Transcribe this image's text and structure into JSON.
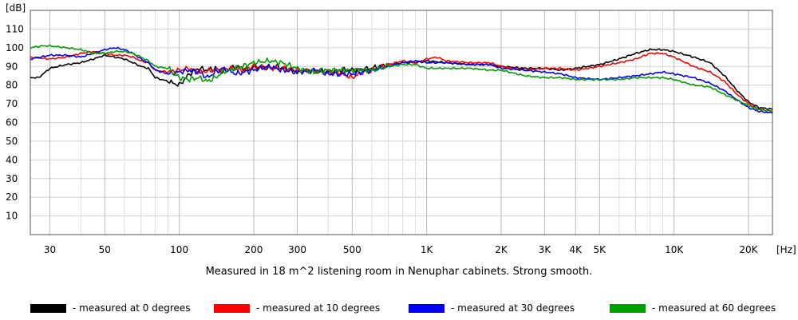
{
  "chart_data": {
    "type": "line",
    "title": "",
    "caption": "Measured in 18 m^2 listening room in Nenuphar cabinets. Strong smooth.",
    "xlabel": "[Hz]",
    "ylabel": "[dB]",
    "xscale": "log",
    "xlim": [
      25,
      25000
    ],
    "ylim": [
      0,
      120
    ],
    "grid": true,
    "legend_position": "bottom",
    "y_ticks": [
      {
        "value": 110,
        "label": "110"
      },
      {
        "value": 100,
        "label": "100"
      },
      {
        "value": 90,
        "label": "90"
      },
      {
        "value": 80,
        "label": "80"
      },
      {
        "value": 70,
        "label": "70"
      },
      {
        "value": 60,
        "label": "60"
      },
      {
        "value": 50,
        "label": "50"
      },
      {
        "value": 40,
        "label": "40"
      },
      {
        "value": 30,
        "label": "30"
      },
      {
        "value": 20,
        "label": "20"
      },
      {
        "value": 10,
        "label": "10"
      }
    ],
    "x_ticks": [
      {
        "value": 30,
        "label": "30"
      },
      {
        "value": 50,
        "label": "50"
      },
      {
        "value": 100,
        "label": "100"
      },
      {
        "value": 200,
        "label": "200"
      },
      {
        "value": 300,
        "label": "300"
      },
      {
        "value": 500,
        "label": "500"
      },
      {
        "value": 1000,
        "label": "1K"
      },
      {
        "value": 2000,
        "label": "2K"
      },
      {
        "value": 3000,
        "label": "3K"
      },
      {
        "value": 4000,
        "label": "4K"
      },
      {
        "value": 5000,
        "label": "5K"
      },
      {
        "value": 10000,
        "label": "10K"
      },
      {
        "value": 20000,
        "label": "20K"
      }
    ],
    "series": [
      {
        "name": "measured at 0 degrees",
        "legend_label": "- measured at 0 degrees",
        "color": "#000000",
        "points": [
          [
            25,
            84
          ],
          [
            27,
            84
          ],
          [
            30,
            89
          ],
          [
            35,
            91
          ],
          [
            40,
            92
          ],
          [
            45,
            94
          ],
          [
            50,
            96
          ],
          [
            55,
            95
          ],
          [
            60,
            94
          ],
          [
            65,
            92
          ],
          [
            70,
            90
          ],
          [
            75,
            89
          ],
          [
            80,
            84
          ],
          [
            90,
            82
          ],
          [
            100,
            80
          ],
          [
            110,
            86
          ],
          [
            120,
            89
          ],
          [
            130,
            88
          ],
          [
            140,
            89
          ],
          [
            150,
            87
          ],
          [
            170,
            90
          ],
          [
            190,
            88
          ],
          [
            200,
            90
          ],
          [
            230,
            89
          ],
          [
            250,
            90
          ],
          [
            300,
            87
          ],
          [
            350,
            88
          ],
          [
            400,
            87
          ],
          [
            450,
            88
          ],
          [
            500,
            88
          ],
          [
            600,
            89
          ],
          [
            700,
            91
          ],
          [
            800,
            92
          ],
          [
            900,
            92
          ],
          [
            1000,
            93
          ],
          [
            1200,
            92
          ],
          [
            1500,
            91
          ],
          [
            1800,
            91
          ],
          [
            2000,
            90
          ],
          [
            2500,
            89
          ],
          [
            3000,
            89
          ],
          [
            3500,
            88
          ],
          [
            4000,
            89
          ],
          [
            5000,
            91
          ],
          [
            6000,
            94
          ],
          [
            7000,
            97
          ],
          [
            8000,
            99
          ],
          [
            9000,
            99
          ],
          [
            10000,
            98
          ],
          [
            12000,
            95
          ],
          [
            14000,
            92
          ],
          [
            16000,
            85
          ],
          [
            18000,
            77
          ],
          [
            20000,
            71
          ],
          [
            22000,
            68
          ],
          [
            25000,
            67
          ]
        ]
      },
      {
        "name": "measured at 10 degrees",
        "legend_label": "- measured at 10 degrees",
        "color": "#ff0000",
        "points": [
          [
            25,
            95
          ],
          [
            30,
            94
          ],
          [
            35,
            95
          ],
          [
            40,
            97
          ],
          [
            45,
            98
          ],
          [
            50,
            97
          ],
          [
            55,
            96
          ],
          [
            60,
            96
          ],
          [
            65,
            95
          ],
          [
            70,
            93
          ],
          [
            75,
            92
          ],
          [
            80,
            88
          ],
          [
            90,
            87
          ],
          [
            100,
            88
          ],
          [
            110,
            89
          ],
          [
            120,
            87
          ],
          [
            140,
            88
          ],
          [
            160,
            89
          ],
          [
            180,
            88
          ],
          [
            200,
            90
          ],
          [
            250,
            89
          ],
          [
            300,
            88
          ],
          [
            400,
            87
          ],
          [
            450,
            86
          ],
          [
            500,
            84
          ],
          [
            550,
            87
          ],
          [
            600,
            88
          ],
          [
            700,
            91
          ],
          [
            800,
            93
          ],
          [
            900,
            92
          ],
          [
            1000,
            94
          ],
          [
            1100,
            95
          ],
          [
            1200,
            93
          ],
          [
            1500,
            92
          ],
          [
            1800,
            92
          ],
          [
            2000,
            90
          ],
          [
            2500,
            88
          ],
          [
            3000,
            89
          ],
          [
            3500,
            89
          ],
          [
            4000,
            88
          ],
          [
            5000,
            90
          ],
          [
            6000,
            92
          ],
          [
            7000,
            94
          ],
          [
            8000,
            97
          ],
          [
            9000,
            97
          ],
          [
            10000,
            95
          ],
          [
            12000,
            90
          ],
          [
            14000,
            87
          ],
          [
            16000,
            82
          ],
          [
            18000,
            75
          ],
          [
            20000,
            70
          ],
          [
            22000,
            67
          ],
          [
            25000,
            66
          ]
        ]
      },
      {
        "name": "measured at 30 degrees",
        "legend_label": "- measured at 30 degrees",
        "color": "#0000ff",
        "points": [
          [
            25,
            94
          ],
          [
            30,
            96
          ],
          [
            35,
            96
          ],
          [
            40,
            95
          ],
          [
            45,
            97
          ],
          [
            50,
            99
          ],
          [
            55,
            100
          ],
          [
            60,
            99
          ],
          [
            65,
            97
          ],
          [
            70,
            94
          ],
          [
            75,
            92
          ],
          [
            80,
            88
          ],
          [
            90,
            86
          ],
          [
            100,
            87
          ],
          [
            110,
            88
          ],
          [
            120,
            87
          ],
          [
            130,
            84
          ],
          [
            140,
            87
          ],
          [
            150,
            89
          ],
          [
            170,
            86
          ],
          [
            200,
            88
          ],
          [
            230,
            90
          ],
          [
            260,
            88
          ],
          [
            300,
            87
          ],
          [
            350,
            88
          ],
          [
            400,
            86
          ],
          [
            450,
            86
          ],
          [
            500,
            86
          ],
          [
            600,
            88
          ],
          [
            700,
            90
          ],
          [
            800,
            92
          ],
          [
            900,
            93
          ],
          [
            1000,
            92
          ],
          [
            1200,
            92
          ],
          [
            1500,
            91
          ],
          [
            1800,
            91
          ],
          [
            2000,
            89
          ],
          [
            2500,
            88
          ],
          [
            3000,
            87
          ],
          [
            3500,
            86
          ],
          [
            4000,
            84
          ],
          [
            5000,
            83
          ],
          [
            6000,
            84
          ],
          [
            7000,
            85
          ],
          [
            8000,
            86
          ],
          [
            9000,
            87
          ],
          [
            10000,
            86
          ],
          [
            12000,
            84
          ],
          [
            14000,
            81
          ],
          [
            16000,
            77
          ],
          [
            18000,
            72
          ],
          [
            20000,
            68
          ],
          [
            22000,
            66
          ],
          [
            25000,
            65
          ]
        ]
      },
      {
        "name": "measured at 60 degrees",
        "legend_label": "- measured at 60 degrees",
        "color": "#00a000",
        "points": [
          [
            25,
            100
          ],
          [
            28,
            101
          ],
          [
            30,
            101
          ],
          [
            35,
            100
          ],
          [
            40,
            99
          ],
          [
            45,
            97
          ],
          [
            50,
            97
          ],
          [
            55,
            98
          ],
          [
            60,
            98
          ],
          [
            65,
            97
          ],
          [
            70,
            95
          ],
          [
            75,
            93
          ],
          [
            80,
            90
          ],
          [
            90,
            89
          ],
          [
            100,
            84
          ],
          [
            110,
            83
          ],
          [
            120,
            84
          ],
          [
            130,
            82
          ],
          [
            140,
            84
          ],
          [
            150,
            87
          ],
          [
            170,
            89
          ],
          [
            200,
            92
          ],
          [
            230,
            93
          ],
          [
            260,
            92
          ],
          [
            300,
            89
          ],
          [
            350,
            87
          ],
          [
            400,
            88
          ],
          [
            450,
            88
          ],
          [
            500,
            88
          ],
          [
            600,
            88
          ],
          [
            700,
            90
          ],
          [
            800,
            91
          ],
          [
            900,
            91
          ],
          [
            1000,
            89
          ],
          [
            1200,
            89
          ],
          [
            1500,
            89
          ],
          [
            1800,
            88
          ],
          [
            2000,
            88
          ],
          [
            2500,
            85
          ],
          [
            3000,
            84
          ],
          [
            3500,
            84
          ],
          [
            4000,
            83
          ],
          [
            5000,
            83
          ],
          [
            6000,
            83
          ],
          [
            7000,
            84
          ],
          [
            8000,
            84
          ],
          [
            9000,
            84
          ],
          [
            10000,
            83
          ],
          [
            12000,
            80
          ],
          [
            14000,
            79
          ],
          [
            16000,
            75
          ],
          [
            18000,
            72
          ],
          [
            20000,
            69
          ],
          [
            22000,
            67
          ],
          [
            25000,
            66
          ]
        ]
      }
    ]
  }
}
